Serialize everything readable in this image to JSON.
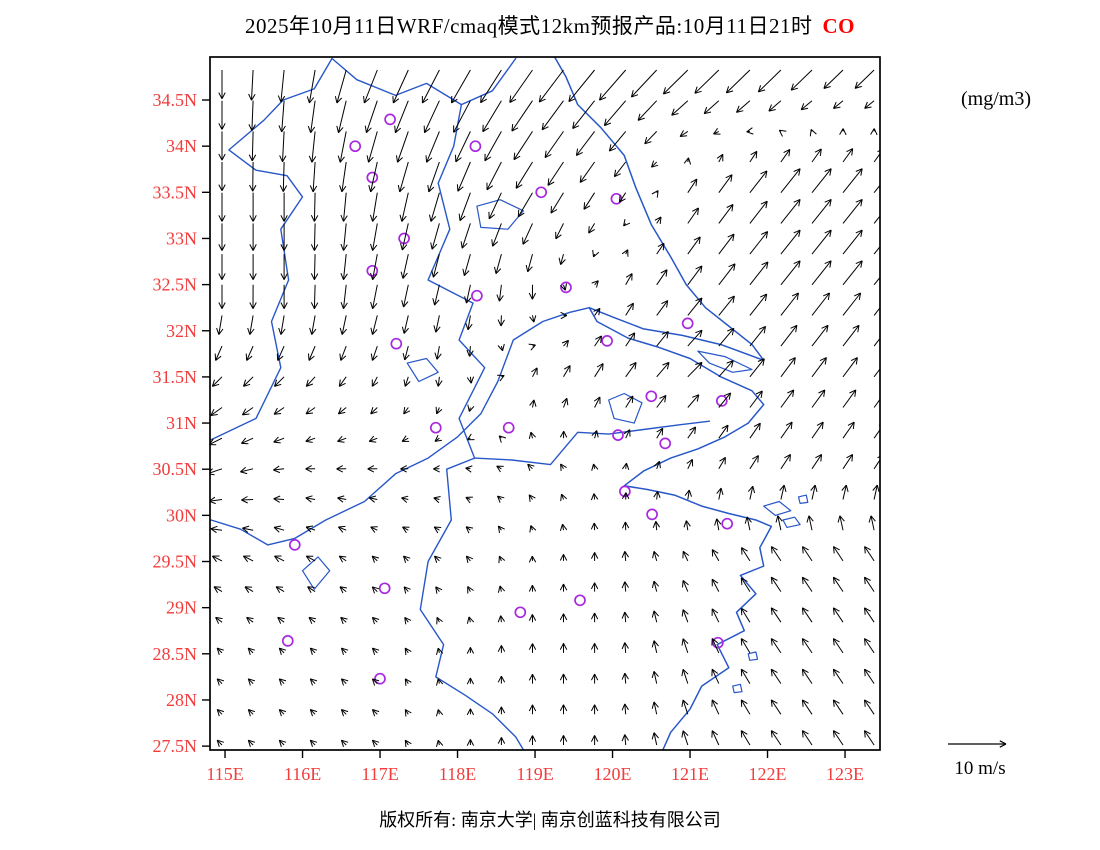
{
  "title": {
    "prefix": "2025年10月11日WRF/cmaq模式12km预报产品:10月11日21时",
    "species": "CO"
  },
  "unit_label": "(mg/m3)",
  "footer": "版权所有: 南京大学| 南京创蓝科技有限公司",
  "legend": {
    "label": "10 m/s",
    "speed_ms": 10
  },
  "colors": {
    "axis_label": "#f23c3c",
    "species": "#ff0000",
    "boundary": "#2857c8",
    "station": "#a828e0",
    "arrow": "#000000",
    "frame": "#000000"
  },
  "axes": {
    "lat_ticks": [
      {
        "value": 34.5,
        "label": "34.5N"
      },
      {
        "value": 34.0,
        "label": "34N"
      },
      {
        "value": 33.5,
        "label": "33.5N"
      },
      {
        "value": 33.0,
        "label": "33N"
      },
      {
        "value": 32.5,
        "label": "32.5N"
      },
      {
        "value": 32.0,
        "label": "32N"
      },
      {
        "value": 31.5,
        "label": "31.5N"
      },
      {
        "value": 31.0,
        "label": "31N"
      },
      {
        "value": 30.5,
        "label": "30.5N"
      },
      {
        "value": 30.0,
        "label": "30N"
      },
      {
        "value": 29.5,
        "label": "29.5N"
      },
      {
        "value": 29.0,
        "label": "29N"
      },
      {
        "value": 28.5,
        "label": "28.5N"
      },
      {
        "value": 28.0,
        "label": "28N"
      },
      {
        "value": 27.5,
        "label": "27.5N"
      }
    ],
    "lon_ticks": [
      {
        "value": 115,
        "label": "115E"
      },
      {
        "value": 116,
        "label": "116E"
      },
      {
        "value": 117,
        "label": "117E"
      },
      {
        "value": 118,
        "label": "118E"
      },
      {
        "value": 119,
        "label": "119E"
      },
      {
        "value": 120,
        "label": "120E"
      },
      {
        "value": 121,
        "label": "121E"
      },
      {
        "value": 122,
        "label": "122E"
      },
      {
        "value": 123,
        "label": "123E"
      }
    ]
  },
  "chart_data": {
    "type": "vector_field_map",
    "lon_range": [
      114.8,
      123.45
    ],
    "lat_range": [
      27.46,
      34.97
    ],
    "wind_grid": {
      "units": "m/s",
      "lons": [
        115,
        116,
        117,
        118,
        119,
        120,
        121,
        122,
        123
      ],
      "lats": [
        27.5,
        28.5,
        29.5,
        30.5,
        31.5,
        32.5,
        33.5,
        35.0
      ],
      "u": [
        [
          -1,
          -1,
          -1,
          0,
          0,
          0,
          -1,
          -2,
          -2
        ],
        [
          -1,
          -1,
          -1,
          0,
          0,
          0,
          -1,
          -2,
          -2
        ],
        [
          -2,
          -2,
          -1,
          -1,
          0,
          0,
          -1,
          -2,
          -2
        ],
        [
          -3,
          -2,
          -2,
          -1,
          -1,
          0,
          1,
          2,
          2
        ],
        [
          -2,
          -2,
          -1,
          0,
          1,
          2,
          3,
          3,
          3
        ],
        [
          0,
          0,
          -1,
          -1,
          0,
          1,
          3,
          4,
          4
        ],
        [
          0,
          0,
          -1,
          -2,
          -3,
          -2,
          2,
          4,
          4
        ],
        [
          0,
          -1,
          -3,
          -4,
          -5,
          -6,
          -6,
          -6,
          -5
        ]
      ],
      "v": [
        [
          1,
          1,
          1,
          1,
          2,
          2,
          3,
          3,
          3
        ],
        [
          1,
          1,
          1,
          1,
          2,
          2,
          3,
          3,
          3
        ],
        [
          1,
          1,
          1,
          1,
          1,
          2,
          2,
          3,
          3
        ],
        [
          -1,
          0,
          0,
          0,
          1,
          1,
          2,
          3,
          3
        ],
        [
          -2,
          -2,
          -2,
          -2,
          2,
          3,
          3,
          4,
          4
        ],
        [
          -5,
          -5,
          -5,
          -4,
          -3,
          2,
          4,
          5,
          5
        ],
        [
          -6,
          -6,
          -6,
          -6,
          -5,
          -3,
          3,
          5,
          5
        ],
        [
          -6,
          -7,
          -7,
          -7,
          -7,
          -7,
          -6,
          -6,
          -5
        ]
      ]
    },
    "stations": [
      [
        117.13,
        34.29
      ],
      [
        116.68,
        34.0
      ],
      [
        118.23,
        34.0
      ],
      [
        116.9,
        33.66
      ],
      [
        119.08,
        33.5
      ],
      [
        120.05,
        33.43
      ],
      [
        117.31,
        33.0
      ],
      [
        116.9,
        32.65
      ],
      [
        118.25,
        32.38
      ],
      [
        119.4,
        32.47
      ],
      [
        120.97,
        32.08
      ],
      [
        117.21,
        31.86
      ],
      [
        119.93,
        31.89
      ],
      [
        120.5,
        31.29
      ],
      [
        121.41,
        31.24
      ],
      [
        117.72,
        30.95
      ],
      [
        118.66,
        30.95
      ],
      [
        120.07,
        30.87
      ],
      [
        120.68,
        30.78
      ],
      [
        120.16,
        30.26
      ],
      [
        120.51,
        30.01
      ],
      [
        121.48,
        29.91
      ],
      [
        115.9,
        29.68
      ],
      [
        117.06,
        29.21
      ],
      [
        119.58,
        29.08
      ],
      [
        118.81,
        28.95
      ],
      [
        115.81,
        28.64
      ],
      [
        121.36,
        28.62
      ],
      [
        117.0,
        28.23
      ]
    ],
    "map": {
      "coastline": [
        [
          119.25,
          34.97
        ],
        [
          119.4,
          34.75
        ],
        [
          119.55,
          34.45
        ],
        [
          119.85,
          34.2
        ],
        [
          120.15,
          33.9
        ],
        [
          120.3,
          33.55
        ],
        [
          120.5,
          33.15
        ],
        [
          120.75,
          32.8
        ],
        [
          120.95,
          32.5
        ],
        [
          121.2,
          32.25
        ],
        [
          121.5,
          32.05
        ],
        [
          121.8,
          31.85
        ],
        [
          121.95,
          31.68
        ],
        [
          121.4,
          31.85
        ],
        [
          120.9,
          31.95
        ],
        [
          120.4,
          32.02
        ],
        [
          120.0,
          32.15
        ],
        [
          119.7,
          32.25
        ],
        [
          119.8,
          32.1
        ],
        [
          120.2,
          31.92
        ],
        [
          120.6,
          31.82
        ],
        [
          121.0,
          31.7
        ],
        [
          121.4,
          31.5
        ],
        [
          121.8,
          31.35
        ],
        [
          121.95,
          31.2
        ],
        [
          121.75,
          31.0
        ],
        [
          121.45,
          30.85
        ],
        [
          121.1,
          30.72
        ],
        [
          120.75,
          30.62
        ],
        [
          120.4,
          30.48
        ],
        [
          120.15,
          30.32
        ],
        [
          120.45,
          30.28
        ],
        [
          120.8,
          30.22
        ],
        [
          121.15,
          30.1
        ],
        [
          121.5,
          30.02
        ],
        [
          121.85,
          29.95
        ],
        [
          122.05,
          29.88
        ],
        [
          121.9,
          29.65
        ],
        [
          121.95,
          29.45
        ],
        [
          121.65,
          29.35
        ],
        [
          121.85,
          29.15
        ],
        [
          121.6,
          28.95
        ],
        [
          121.7,
          28.75
        ],
        [
          121.35,
          28.6
        ],
        [
          121.5,
          28.35
        ],
        [
          121.15,
          28.15
        ],
        [
          121.0,
          27.9
        ],
        [
          120.75,
          27.65
        ],
        [
          120.65,
          27.46
        ]
      ],
      "islands": [
        [
          [
            121.1,
            31.78
          ],
          [
            121.45,
            31.72
          ],
          [
            121.8,
            31.58
          ],
          [
            121.55,
            31.55
          ],
          [
            121.25,
            31.65
          ],
          [
            121.1,
            31.78
          ]
        ],
        [
          [
            121.95,
            30.1
          ],
          [
            122.15,
            30.15
          ],
          [
            122.3,
            30.05
          ],
          [
            122.1,
            30.0
          ],
          [
            121.95,
            30.1
          ]
        ],
        [
          [
            122.2,
            29.95
          ],
          [
            122.35,
            29.98
          ],
          [
            122.42,
            29.9
          ],
          [
            122.25,
            29.87
          ],
          [
            122.2,
            29.95
          ]
        ],
        [
          [
            122.4,
            30.2
          ],
          [
            122.5,
            30.22
          ],
          [
            122.52,
            30.14
          ],
          [
            122.42,
            30.13
          ],
          [
            122.4,
            30.2
          ]
        ],
        [
          [
            121.75,
            28.5
          ],
          [
            121.85,
            28.52
          ],
          [
            121.87,
            28.44
          ],
          [
            121.77,
            28.43
          ],
          [
            121.75,
            28.5
          ]
        ],
        [
          [
            121.55,
            28.15
          ],
          [
            121.65,
            28.17
          ],
          [
            121.67,
            28.09
          ],
          [
            121.57,
            28.08
          ],
          [
            121.55,
            28.15
          ]
        ]
      ],
      "boundaries": [
        [
          [
            116.38,
            34.95
          ],
          [
            116.15,
            34.62
          ],
          [
            115.75,
            34.5
          ],
          [
            115.5,
            34.28
          ],
          [
            115.05,
            33.96
          ],
          [
            115.4,
            33.74
          ],
          [
            115.8,
            33.68
          ],
          [
            116.0,
            33.45
          ],
          [
            115.72,
            33.1
          ],
          [
            115.82,
            32.55
          ],
          [
            115.6,
            32.1
          ],
          [
            115.72,
            31.6
          ],
          [
            115.4,
            31.05
          ],
          [
            114.82,
            30.82
          ]
        ],
        [
          [
            116.38,
            34.95
          ],
          [
            116.7,
            34.72
          ],
          [
            117.2,
            34.55
          ],
          [
            117.6,
            34.68
          ],
          [
            118.05,
            34.45
          ],
          [
            118.45,
            34.6
          ],
          [
            118.75,
            34.95
          ]
        ],
        [
          [
            118.05,
            34.45
          ],
          [
            117.95,
            34.0
          ],
          [
            117.75,
            33.6
          ],
          [
            117.9,
            33.1
          ],
          [
            117.62,
            32.55
          ],
          [
            118.2,
            32.3
          ],
          [
            118.02,
            31.9
          ],
          [
            118.35,
            31.6
          ],
          [
            118.02,
            31.05
          ],
          [
            118.22,
            30.62
          ],
          [
            117.86,
            30.5
          ],
          [
            117.92,
            29.95
          ],
          [
            117.62,
            29.5
          ],
          [
            117.52,
            28.98
          ],
          [
            117.82,
            28.6
          ],
          [
            117.72,
            28.25
          ],
          [
            118.1,
            28.05
          ],
          [
            118.45,
            27.85
          ],
          [
            118.75,
            27.6
          ],
          [
            118.85,
            27.46
          ]
        ],
        [
          [
            115.9,
            29.75
          ],
          [
            116.3,
            29.95
          ],
          [
            116.8,
            30.15
          ],
          [
            117.2,
            30.45
          ],
          [
            117.62,
            30.62
          ],
          [
            118.0,
            30.85
          ],
          [
            118.3,
            31.1
          ],
          [
            118.52,
            31.45
          ],
          [
            118.72,
            31.9
          ],
          [
            119.1,
            32.1
          ],
          [
            119.45,
            32.2
          ],
          [
            119.7,
            32.25
          ]
        ],
        [
          [
            118.22,
            30.62
          ],
          [
            118.7,
            30.6
          ],
          [
            119.2,
            30.55
          ],
          [
            119.55,
            30.9
          ],
          [
            119.95,
            30.88
          ],
          [
            120.4,
            30.93
          ],
          [
            120.85,
            30.98
          ],
          [
            121.25,
            31.02
          ]
        ],
        [
          [
            114.82,
            29.95
          ],
          [
            115.2,
            29.85
          ],
          [
            115.55,
            29.68
          ],
          [
            115.9,
            29.75
          ]
        ]
      ],
      "lakes": [
        [
          [
            119.95,
            31.25
          ],
          [
            120.15,
            31.32
          ],
          [
            120.38,
            31.22
          ],
          [
            120.28,
            31.0
          ],
          [
            120.02,
            31.05
          ],
          [
            119.95,
            31.25
          ]
        ],
        [
          [
            118.25,
            33.35
          ],
          [
            118.55,
            33.42
          ],
          [
            118.85,
            33.3
          ],
          [
            118.65,
            33.1
          ],
          [
            118.3,
            33.12
          ],
          [
            118.25,
            33.35
          ]
        ],
        [
          [
            117.35,
            31.65
          ],
          [
            117.6,
            31.7
          ],
          [
            117.75,
            31.55
          ],
          [
            117.5,
            31.45
          ],
          [
            117.35,
            31.65
          ]
        ],
        [
          [
            116.0,
            29.4
          ],
          [
            116.2,
            29.55
          ],
          [
            116.35,
            29.4
          ],
          [
            116.15,
            29.2
          ],
          [
            116.0,
            29.4
          ]
        ]
      ]
    }
  }
}
